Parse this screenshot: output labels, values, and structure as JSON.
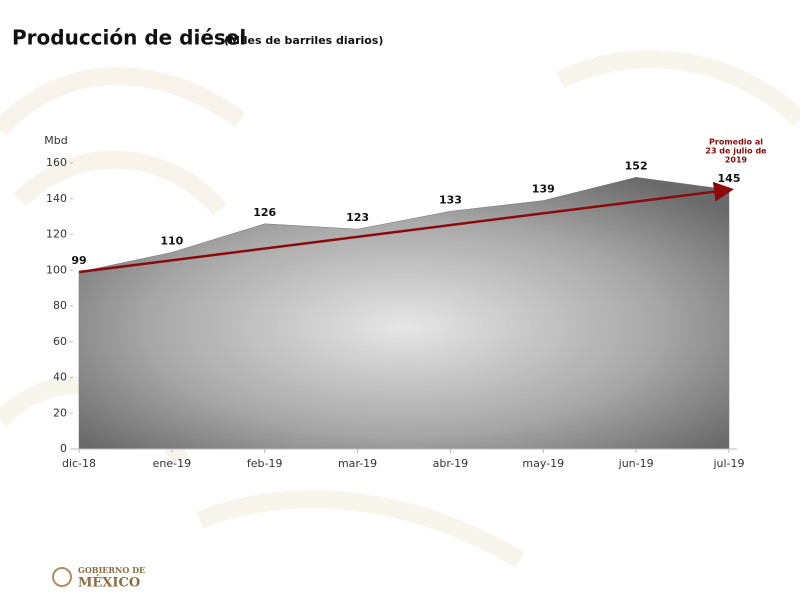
{
  "chart_data": {
    "type": "area",
    "title": "Producción de diésel",
    "subtitle": "(Miles de barriles diarios)",
    "y_label": "Mbd",
    "categories": [
      "dic-18",
      "ene-19",
      "feb-19",
      "mar-19",
      "abr-19",
      "may-19",
      "jun-19",
      "jul-19"
    ],
    "values": [
      99,
      110,
      126,
      123,
      133,
      139,
      152,
      145
    ],
    "ylim": [
      0,
      160
    ],
    "yticks": [
      0,
      20,
      40,
      60,
      80,
      100,
      120,
      140,
      160
    ],
    "trend_color": "#8b0a0a",
    "annotation": [
      "Promedio al",
      "23 de julio de",
      "2019"
    ]
  },
  "footer": {
    "logo_line1": "GOBIERNO DE",
    "logo_line2": "MÉXICO"
  }
}
